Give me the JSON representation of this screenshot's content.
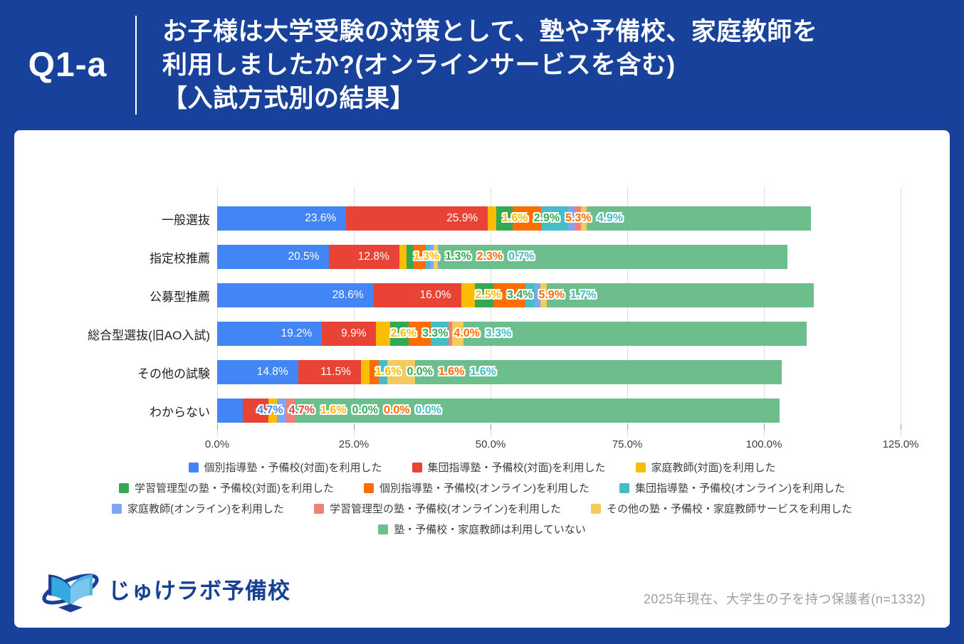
{
  "header": {
    "question_id": "Q1-a",
    "title_lines": [
      "お子様は大学受験の対策として、塾や予備校、家庭教師を",
      "利用しましたか?(オンラインサービスを含む)",
      "【入試方式別の結果】"
    ]
  },
  "chart_data": {
    "type": "bar",
    "stacked": true,
    "orientation": "horizontal",
    "value_unit": "%",
    "grid": true,
    "legend_position": "bottom",
    "categories": [
      "一般選抜",
      "指定校推薦",
      "公募型推薦",
      "総合型選抜(旧AO入試)",
      "その他の試験",
      "わからない"
    ],
    "x_axis": {
      "tick_labels": [
        "0.0%",
        "25.0%",
        "50.0%",
        "75.0%",
        "100.0%",
        "125.0%"
      ],
      "tick_values": [
        0,
        25,
        50,
        75,
        100,
        125
      ],
      "min": 0,
      "max": 125
    },
    "series": [
      {
        "name": "個別指導塾・予備校(対面)を利用した",
        "color": "#4285F4",
        "label_visible": true,
        "values": [
          23.6,
          20.5,
          28.6,
          19.2,
          14.8,
          4.7
        ]
      },
      {
        "name": "集団指導塾・予備校(対面)を利用した",
        "color": "#E94335",
        "label_visible": true,
        "values": [
          25.9,
          12.8,
          16.0,
          9.9,
          11.5,
          4.7
        ]
      },
      {
        "name": "家庭教師(対面)を利用した",
        "color": "#FBBC04",
        "label_visible": true,
        "values": [
          1.6,
          1.3,
          2.5,
          2.6,
          1.6,
          1.6
        ]
      },
      {
        "name": "学習管理型の塾・予備校(対面)を利用した",
        "color": "#34A853",
        "label_visible": true,
        "values": [
          2.9,
          1.3,
          3.4,
          3.3,
          0.0,
          0.0
        ]
      },
      {
        "name": "個別指導塾・予備校(オンライン)を利用した",
        "color": "#FF6D01",
        "label_visible": true,
        "values": [
          5.3,
          2.3,
          5.9,
          4.0,
          1.6,
          0.0
        ]
      },
      {
        "name": "集団指導塾・予備校(オンライン)を利用した",
        "color": "#46BDC6",
        "label_visible": true,
        "values": [
          4.9,
          0.7,
          1.7,
          3.3,
          1.6,
          0.0
        ]
      },
      {
        "name": "家庭教師(オンライン)を利用した",
        "color": "#7EA6F4",
        "label_visible": false,
        "values_estimated": true,
        "values": [
          1.2,
          0.7,
          1.0,
          0.0,
          0.0,
          1.6
        ]
      },
      {
        "name": "学習管理型の塾・予備校(オンライン)を利用した",
        "color": "#EE8077",
        "label_visible": false,
        "values_estimated": true,
        "values": [
          1.2,
          0.0,
          0.0,
          0.7,
          0.0,
          1.7
        ]
      },
      {
        "name": "その他の塾・予備校・家庭教師サービスを利用した",
        "color": "#F3CA5B",
        "label_visible": false,
        "values_estimated": true,
        "values": [
          1.0,
          0.7,
          1.2,
          2.0,
          5.1,
          0.0
        ]
      },
      {
        "name": "塾・予備校・家庭教師は利用していない",
        "color": "#6CBE8C",
        "label_visible": false,
        "values_estimated": true,
        "values": [
          41.0,
          64.0,
          48.8,
          62.8,
          67.0,
          88.6
        ]
      }
    ],
    "legend_rows": [
      [
        0,
        1,
        2
      ],
      [
        3,
        4,
        5
      ],
      [
        6,
        7,
        8
      ],
      [
        9
      ]
    ]
  },
  "footer": {
    "logo_text": "じゅけラボ予備校",
    "note": "2025年現在、大学生の子を持つ保護者(n=1332)"
  },
  "colors": {
    "background": "#17419A",
    "card": "#FFFFFF"
  }
}
